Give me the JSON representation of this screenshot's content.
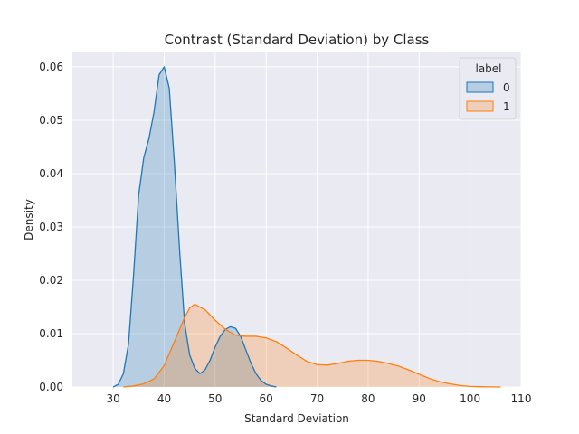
{
  "chart_data": {
    "type": "area",
    "title": "Contrast (Standard Deviation) by Class",
    "xlabel": "Standard Deviation",
    "ylabel": "Density",
    "xlim": [
      22,
      110
    ],
    "ylim": [
      0,
      0.0627
    ],
    "xticks": [
      30,
      40,
      50,
      60,
      70,
      80,
      90,
      100,
      110
    ],
    "yticks": [
      0.0,
      0.01,
      0.02,
      0.03,
      0.04,
      0.05,
      0.06
    ],
    "ytick_labels": [
      "0.00",
      "0.01",
      "0.02",
      "0.03",
      "0.04",
      "0.05",
      "0.06"
    ],
    "grid": true,
    "legend": {
      "title": "label",
      "position": "top-right"
    },
    "series": [
      {
        "name": "0",
        "color": "#1f77b4",
        "x": [
          30,
          31,
          32,
          33,
          34,
          35,
          36,
          37,
          38,
          39,
          40,
          41,
          42,
          43,
          44,
          45,
          46,
          47,
          48,
          49,
          50,
          51,
          52,
          53,
          54,
          55,
          56,
          57,
          58,
          59,
          60,
          61,
          62
        ],
        "y": [
          0.0,
          0.0005,
          0.0025,
          0.008,
          0.021,
          0.036,
          0.043,
          0.0465,
          0.0515,
          0.0585,
          0.06,
          0.056,
          0.042,
          0.026,
          0.012,
          0.006,
          0.0035,
          0.0025,
          0.0032,
          0.005,
          0.0075,
          0.0095,
          0.0108,
          0.0113,
          0.011,
          0.0095,
          0.007,
          0.0045,
          0.0025,
          0.0012,
          0.0005,
          0.0002,
          0.0
        ]
      },
      {
        "name": "1",
        "color": "#ff7f0e",
        "x": [
          32,
          34,
          36,
          38,
          40,
          42,
          44,
          45,
          46,
          48,
          50,
          52,
          54,
          56,
          58,
          60,
          62,
          64,
          66,
          68,
          70,
          72,
          74,
          76,
          78,
          80,
          82,
          84,
          86,
          88,
          90,
          92,
          94,
          96,
          98,
          100,
          102,
          104,
          106
        ],
        "y": [
          0.0,
          0.0002,
          0.0006,
          0.0015,
          0.004,
          0.0085,
          0.013,
          0.0148,
          0.0155,
          0.0145,
          0.0125,
          0.0108,
          0.0097,
          0.0095,
          0.0095,
          0.0092,
          0.0085,
          0.0073,
          0.006,
          0.0048,
          0.0042,
          0.0041,
          0.0044,
          0.0048,
          0.005,
          0.005,
          0.0048,
          0.0044,
          0.0039,
          0.0032,
          0.0024,
          0.0016,
          0.001,
          0.0006,
          0.0003,
          0.0001,
          5e-05,
          2e-05,
          0.0
        ]
      }
    ]
  }
}
